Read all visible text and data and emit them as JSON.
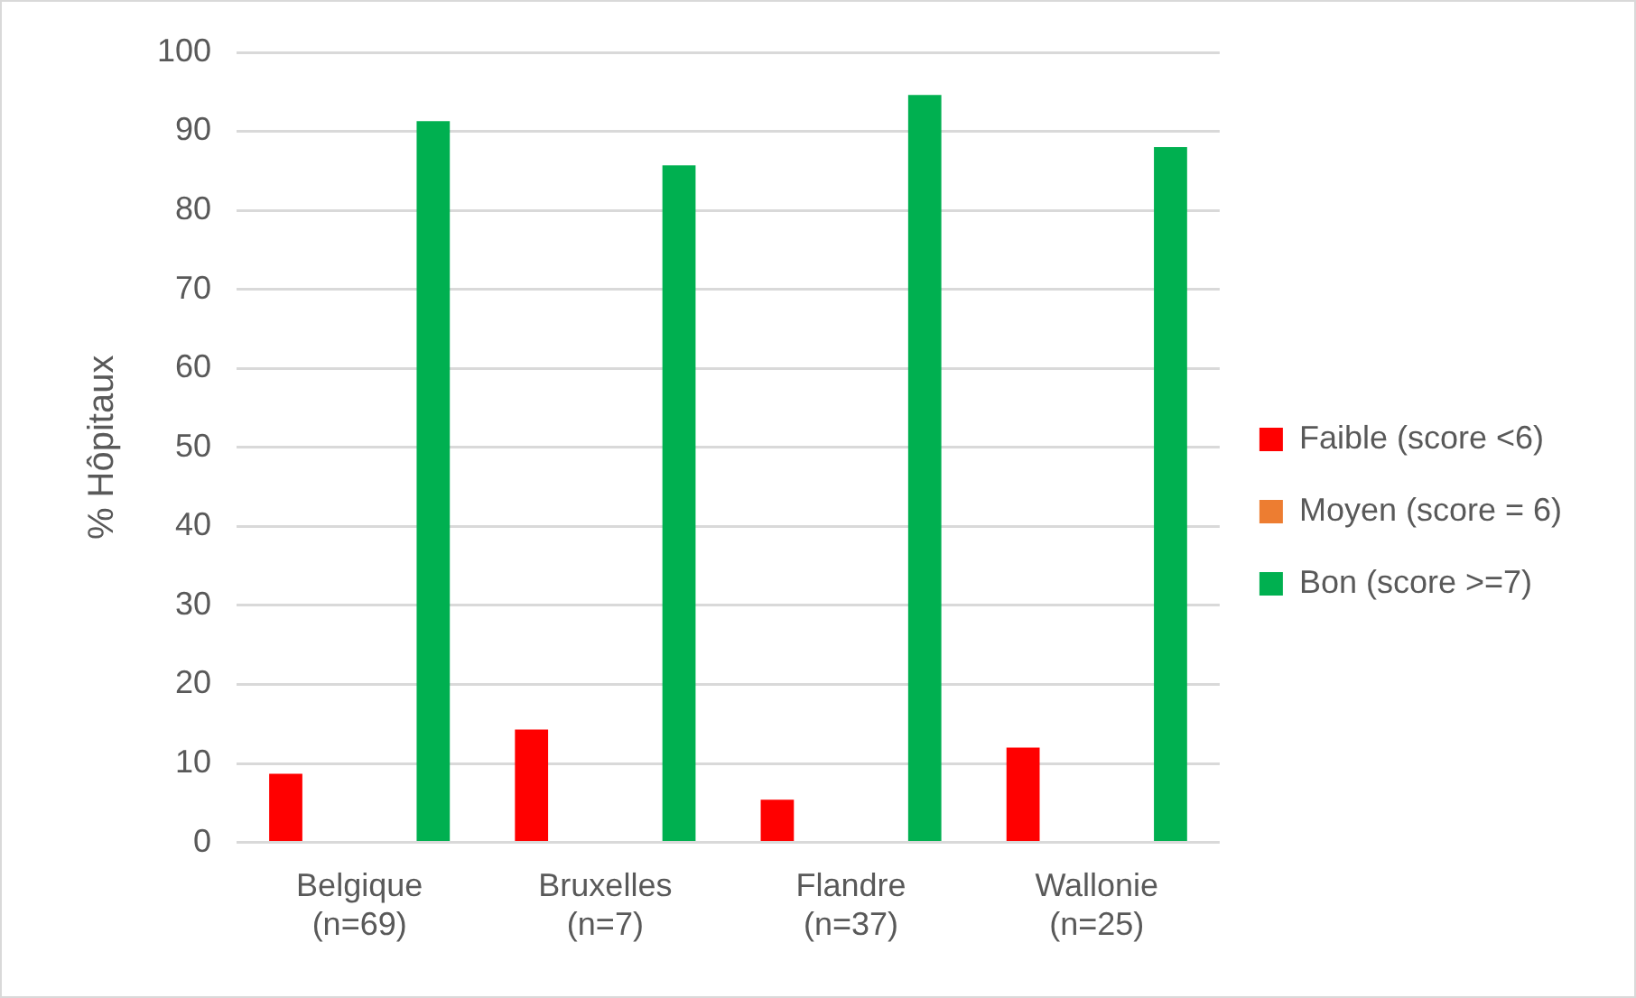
{
  "chart_data": {
    "type": "bar",
    "ylabel": "% Hôpitaux",
    "categories": [
      "Belgique\n(n=69)",
      "Bruxelles\n(n=7)",
      "Flandre\n(n=37)",
      "Wallonie\n(n=25)"
    ],
    "series": [
      {
        "name": "Faible (score <6)",
        "color": "#ff0000",
        "values": [
          8.7,
          14.3,
          5.4,
          12.0
        ]
      },
      {
        "name": "Moyen (score = 6)",
        "color": "#ed7d31",
        "values": [
          0,
          0,
          0,
          0
        ]
      },
      {
        "name": "Bon (score >=7)",
        "color": "#00b050",
        "values": [
          91.3,
          85.7,
          94.6,
          88.0
        ]
      }
    ],
    "ylim": [
      0,
      100
    ],
    "yticks": [
      0,
      10,
      20,
      30,
      40,
      50,
      60,
      70,
      80,
      90,
      100
    ],
    "grid": "y",
    "legend": "right"
  }
}
